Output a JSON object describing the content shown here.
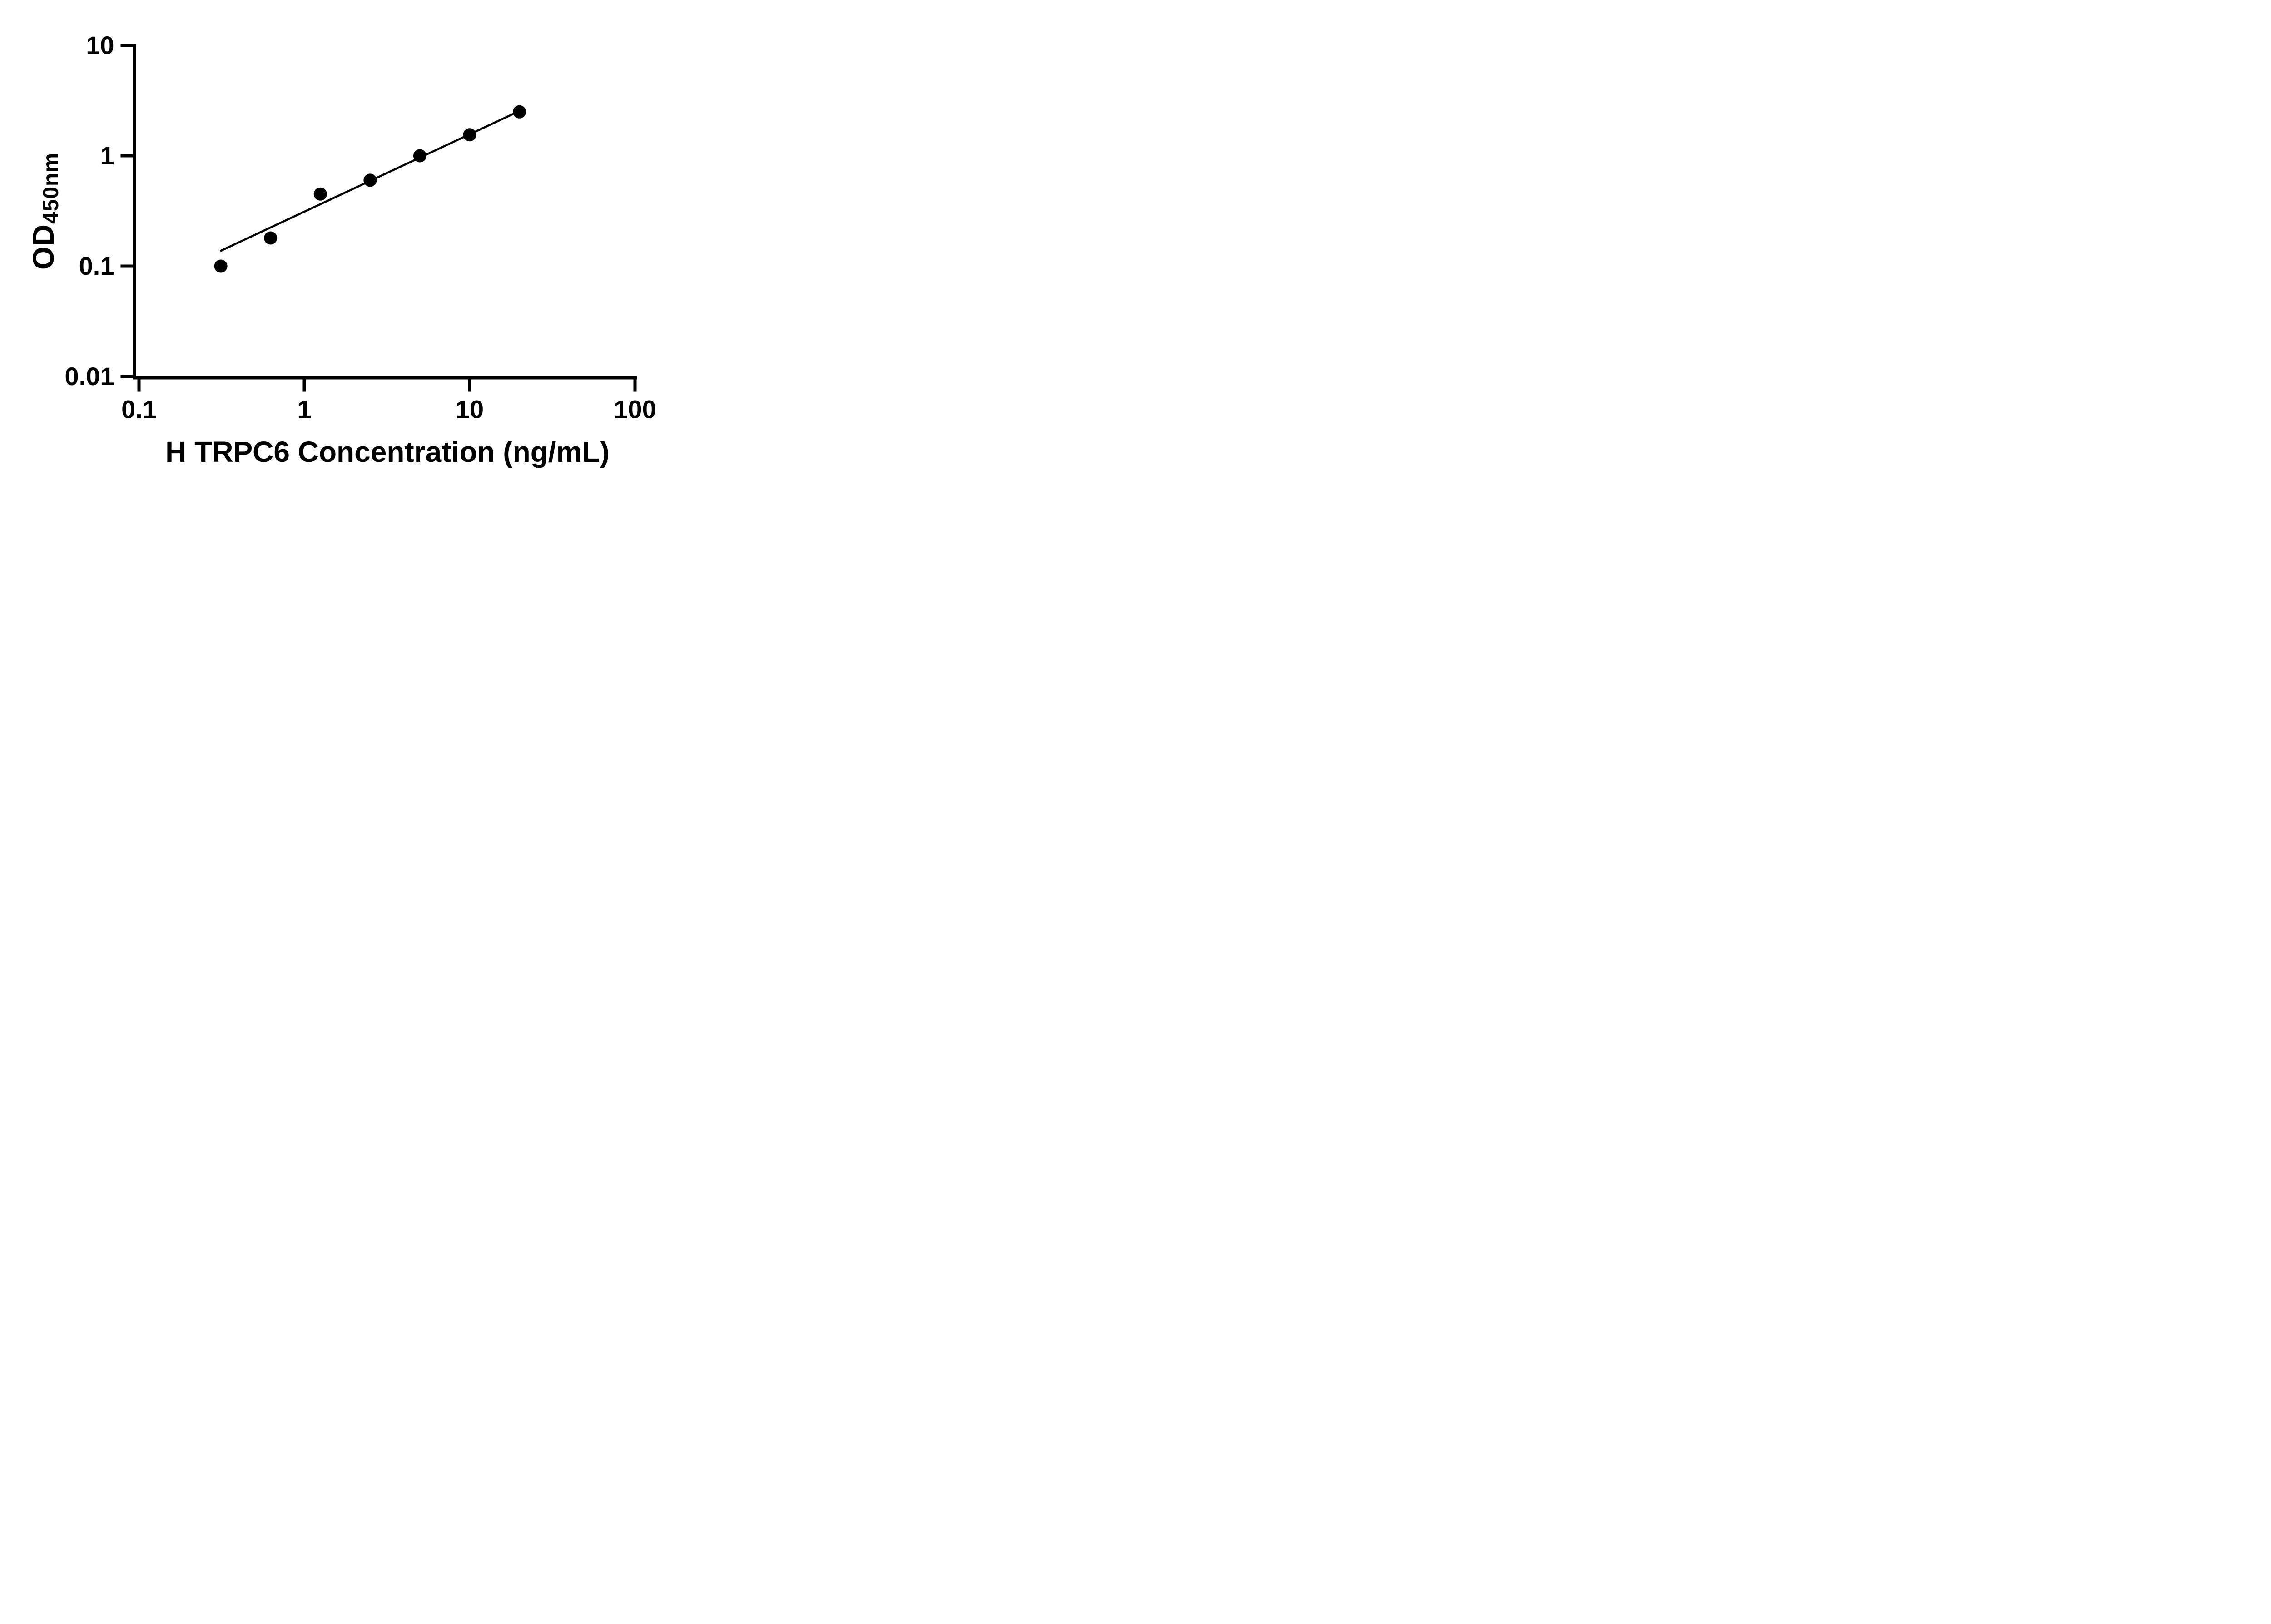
{
  "chart_data": {
    "type": "scatter",
    "xlabel": "H TRPC6 Concentration (ng/mL)",
    "ylabel_main": "OD",
    "ylabel_sub": "450nm",
    "x_scale": "log",
    "y_scale": "log",
    "xlim": [
      0.1,
      100
    ],
    "ylim": [
      0.01,
      10
    ],
    "x_ticks": [
      0.1,
      1,
      10,
      100
    ],
    "x_tick_labels": [
      "0.1",
      "1",
      "10",
      "100"
    ],
    "y_ticks": [
      10,
      1,
      0.1,
      0.01
    ],
    "y_tick_labels": [
      "10",
      "1",
      "0.1",
      "0.01"
    ],
    "grid": false,
    "legend": "none",
    "points": [
      {
        "x": 0.3125,
        "y": 0.1
      },
      {
        "x": 0.625,
        "y": 0.18
      },
      {
        "x": 1.25,
        "y": 0.45
      },
      {
        "x": 2.5,
        "y": 0.6
      },
      {
        "x": 5,
        "y": 1.0
      },
      {
        "x": 10,
        "y": 1.55
      },
      {
        "x": 20,
        "y": 2.5
      }
    ],
    "trendline": {
      "x1": 0.31,
      "y1": 0.137,
      "x2": 20.4,
      "y2": 2.58
    },
    "marker_color": "#000000",
    "line_color": "#000000",
    "axis_color": "#000000",
    "background_color": "#ffffff"
  }
}
